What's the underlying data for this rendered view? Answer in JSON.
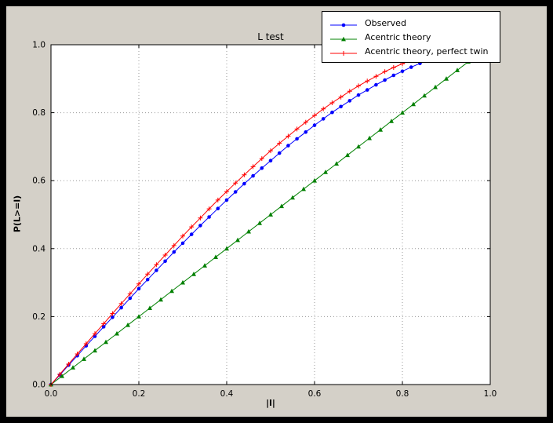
{
  "figure": {
    "title": "L test",
    "xlabel": "|l|",
    "ylabel": "P(L>=l)"
  },
  "colors": {
    "window_background": "#000000",
    "figure_background": "#d4d0c8",
    "plot_background": "#ffffff",
    "frame": "#000000",
    "grid": "#999999",
    "tick_label": "#000000"
  },
  "chart_data": {
    "type": "line",
    "title": "L test",
    "xlabel": "|l|",
    "ylabel": "P(L>=l)",
    "xlim": [
      0.0,
      1.0
    ],
    "ylim": [
      0.0,
      1.0
    ],
    "xticks": [
      0.0,
      0.2,
      0.4,
      0.6,
      0.8,
      1.0
    ],
    "yticks": [
      0.0,
      0.2,
      0.4,
      0.6,
      0.8,
      1.0
    ],
    "grid": true,
    "grid_style": "dotted",
    "legend_position": "upper right, overlapping top of axes",
    "series": [
      {
        "name": "Observed",
        "color": "#0000ff",
        "marker": "circle",
        "x": [
          0,
          0.02,
          0.04,
          0.06,
          0.08,
          0.1,
          0.12,
          0.14,
          0.16,
          0.18,
          0.2,
          0.22,
          0.24,
          0.26,
          0.28,
          0.3,
          0.32,
          0.34,
          0.36,
          0.38,
          0.4,
          0.42,
          0.44,
          0.46,
          0.48,
          0.5,
          0.52,
          0.54,
          0.56,
          0.58,
          0.6,
          0.62,
          0.64,
          0.66,
          0.68,
          0.7,
          0.72,
          0.74,
          0.76,
          0.78,
          0.8,
          0.82,
          0.84,
          0.86
        ],
        "y": [
          0,
          0.028,
          0.057,
          0.085,
          0.114,
          0.142,
          0.17,
          0.198,
          0.226,
          0.254,
          0.282,
          0.309,
          0.336,
          0.363,
          0.39,
          0.416,
          0.442,
          0.468,
          0.493,
          0.518,
          0.543,
          0.567,
          0.591,
          0.614,
          0.637,
          0.659,
          0.681,
          0.703,
          0.723,
          0.743,
          0.763,
          0.782,
          0.801,
          0.818,
          0.835,
          0.852,
          0.867,
          0.882,
          0.896,
          0.91,
          0.922,
          0.934,
          0.945,
          0.955
        ]
      },
      {
        "name": "Acentric theory",
        "color": "#008000",
        "marker": "triangle",
        "x": [
          0,
          0.025,
          0.05,
          0.075,
          0.1,
          0.125,
          0.15,
          0.175,
          0.2,
          0.225,
          0.25,
          0.275,
          0.3,
          0.325,
          0.35,
          0.375,
          0.4,
          0.425,
          0.45,
          0.475,
          0.5,
          0.525,
          0.55,
          0.575,
          0.6,
          0.625,
          0.65,
          0.675,
          0.7,
          0.725,
          0.75,
          0.775,
          0.8,
          0.825,
          0.85,
          0.875,
          0.9,
          0.925,
          0.95,
          0.975
        ],
        "y": [
          0,
          0.025,
          0.05,
          0.075,
          0.1,
          0.125,
          0.15,
          0.175,
          0.2,
          0.225,
          0.25,
          0.275,
          0.3,
          0.325,
          0.35,
          0.375,
          0.4,
          0.425,
          0.45,
          0.475,
          0.5,
          0.525,
          0.55,
          0.575,
          0.6,
          0.625,
          0.65,
          0.675,
          0.7,
          0.725,
          0.75,
          0.775,
          0.8,
          0.825,
          0.85,
          0.875,
          0.9,
          0.925,
          0.95,
          0.975
        ]
      },
      {
        "name": "Acentric theory, perfect twin",
        "color": "#ff0000",
        "marker": "plus",
        "x": [
          0,
          0.02,
          0.04,
          0.06,
          0.08,
          0.1,
          0.12,
          0.14,
          0.16,
          0.18,
          0.2,
          0.22,
          0.24,
          0.26,
          0.28,
          0.3,
          0.32,
          0.34,
          0.36,
          0.38,
          0.4,
          0.42,
          0.44,
          0.46,
          0.48,
          0.5,
          0.52,
          0.54,
          0.56,
          0.58,
          0.6,
          0.62,
          0.64,
          0.66,
          0.68,
          0.7,
          0.72,
          0.74,
          0.76,
          0.78,
          0.8,
          0.82,
          0.84,
          0.86
        ],
        "y": [
          0,
          0.03,
          0.06,
          0.09,
          0.12,
          0.15,
          0.179,
          0.209,
          0.238,
          0.267,
          0.296,
          0.325,
          0.353,
          0.381,
          0.409,
          0.437,
          0.464,
          0.49,
          0.517,
          0.543,
          0.568,
          0.593,
          0.617,
          0.641,
          0.665,
          0.688,
          0.71,
          0.731,
          0.752,
          0.772,
          0.792,
          0.811,
          0.829,
          0.846,
          0.863,
          0.879,
          0.893,
          0.907,
          0.921,
          0.933,
          0.944,
          0.954,
          0.964,
          0.972
        ]
      }
    ]
  }
}
